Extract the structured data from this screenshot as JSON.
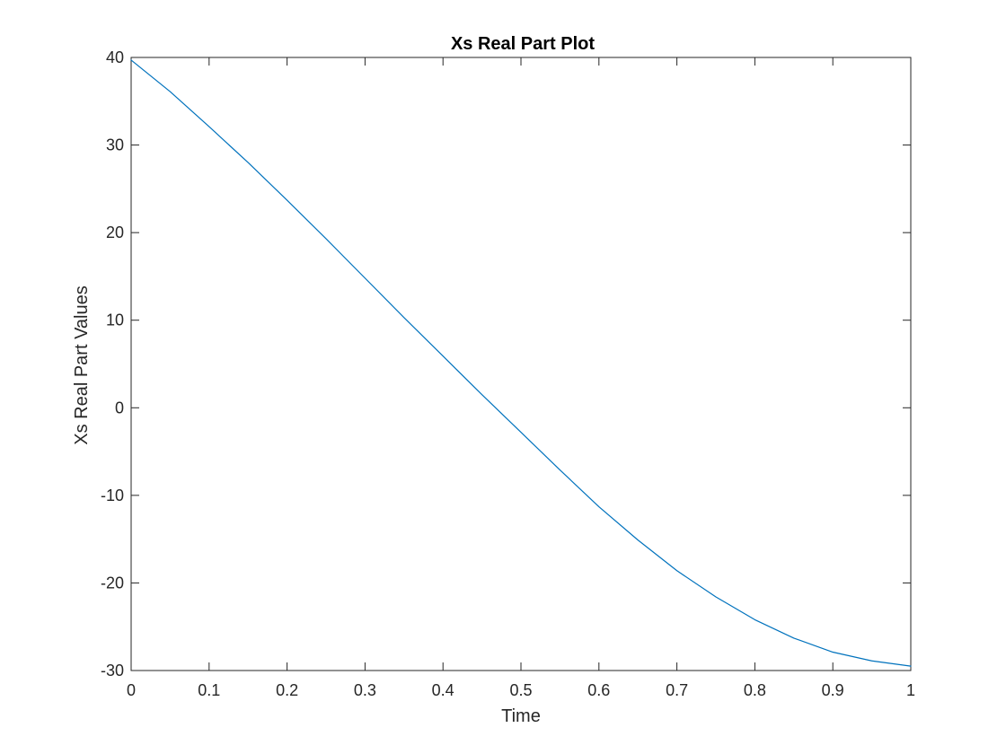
{
  "chart_data": {
    "type": "line",
    "title": "Xs Real Part Plot",
    "xlabel": "Time",
    "ylabel": "Xs Real Part Values",
    "xlim": [
      0,
      1
    ],
    "ylim": [
      -30,
      40
    ],
    "xticks": [
      0,
      0.1,
      0.2,
      0.3,
      0.4,
      0.5,
      0.6,
      0.7,
      0.8,
      0.9,
      1
    ],
    "xtick_labels": [
      "0",
      "0.1",
      "0.2",
      "0.3",
      "0.4",
      "0.5",
      "0.6",
      "0.7",
      "0.8",
      "0.9",
      "1"
    ],
    "yticks": [
      -30,
      -20,
      -10,
      0,
      10,
      20,
      30,
      40
    ],
    "ytick_labels": [
      "-30",
      "-20",
      "-10",
      "0",
      "10",
      "20",
      "30",
      "40"
    ],
    "grid": false,
    "series": [
      {
        "color": "#0072BD",
        "x": [
          0,
          0.05,
          0.1,
          0.15,
          0.2,
          0.25,
          0.3,
          0.35,
          0.4,
          0.45,
          0.5,
          0.55,
          0.6,
          0.65,
          0.7,
          0.75,
          0.8,
          0.85,
          0.9,
          0.95,
          1.0
        ],
        "y": [
          39.7,
          36.1,
          32.1,
          28.0,
          23.7,
          19.3,
          14.8,
          10.3,
          5.9,
          1.5,
          -2.8,
          -7.1,
          -11.3,
          -15.1,
          -18.6,
          -21.6,
          -24.2,
          -26.3,
          -27.9,
          -28.9,
          -29.5
        ]
      }
    ]
  }
}
